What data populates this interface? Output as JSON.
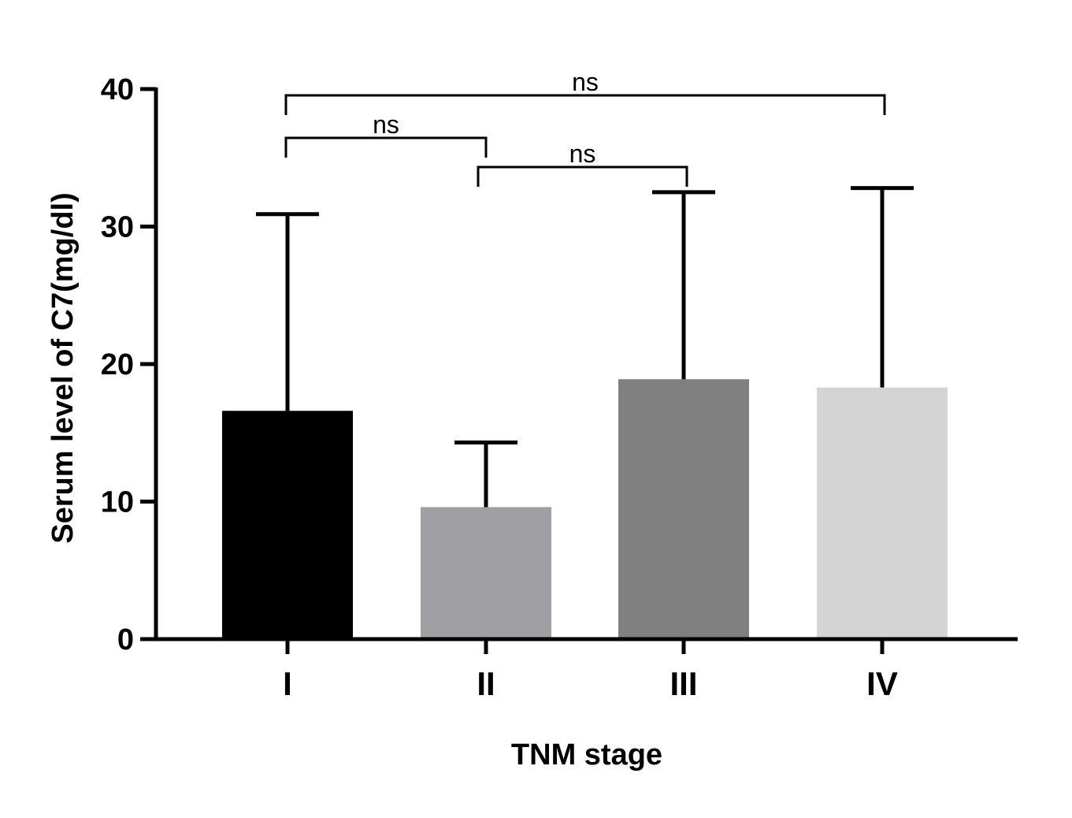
{
  "chart_data": {
    "type": "bar",
    "title": "",
    "xlabel": "TNM stage",
    "ylabel": "Serum level of C7(mg/dl)",
    "ylim": [
      0,
      40
    ],
    "yticks": [
      "0",
      "10",
      "20",
      "30",
      "40"
    ],
    "categories": [
      "I",
      "II",
      "III",
      "IV"
    ],
    "values": [
      16.6,
      9.6,
      18.9,
      18.3
    ],
    "error_upper": [
      30.9,
      14.3,
      32.5,
      32.8
    ],
    "colors": [
      "#000000",
      "#a0a0a4",
      "#808080",
      "#d4d4d4"
    ],
    "grid": false,
    "comparisons": [
      {
        "from": "I",
        "to": "IV",
        "label": "ns"
      },
      {
        "from": "I",
        "to": "II",
        "label": "ns"
      },
      {
        "from": "II",
        "to": "III",
        "label": "ns"
      }
    ]
  }
}
